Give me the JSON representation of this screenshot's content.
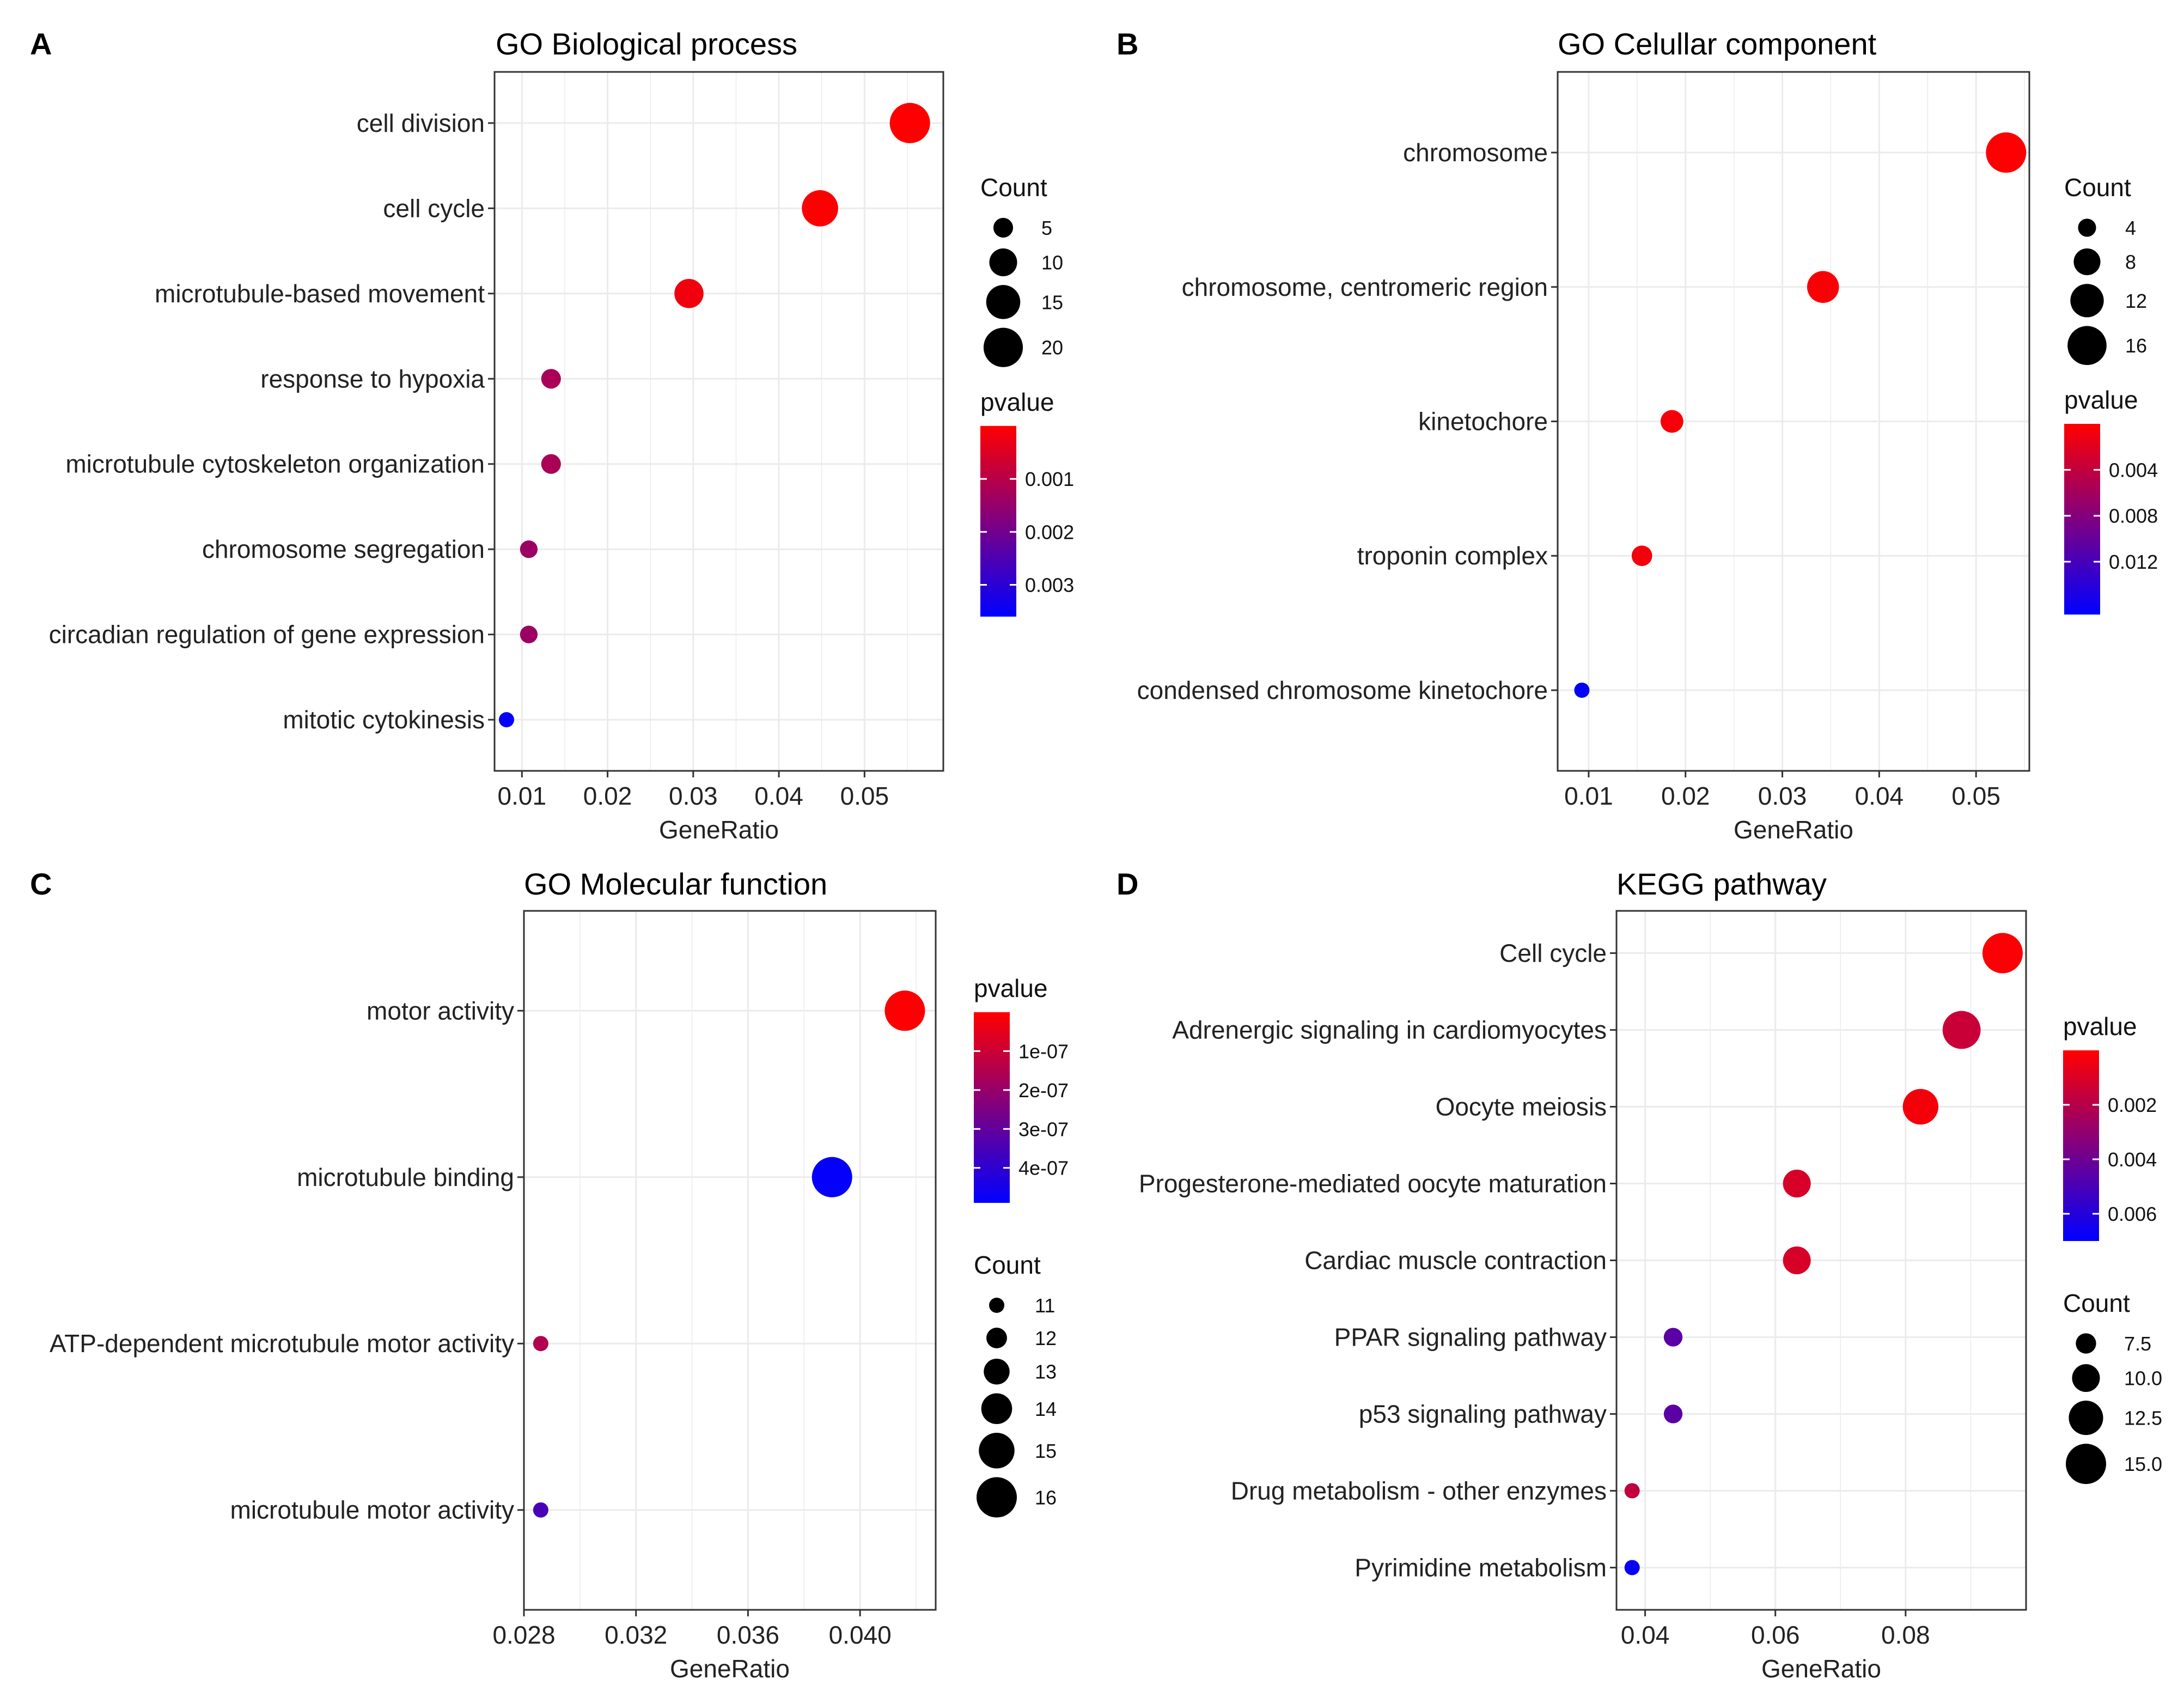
{
  "chart_data": [
    {
      "panel": "A",
      "type": "scatter",
      "title": "GO Biological process",
      "xlabel": "GeneRatio",
      "ylabel": "",
      "xlim": [
        0.0068,
        0.0592
      ],
      "xticks": [
        0.01,
        0.02,
        0.03,
        0.04,
        0.05
      ],
      "xtick_labels": [
        "0.01",
        "0.02",
        "0.03",
        "0.04",
        "0.05"
      ],
      "grid": true,
      "categories": [
        "cell division",
        "cell cycle",
        "microtubule-based movement",
        "response to hypoxia",
        "microtubule cytoskeleton organization",
        "chromosome segregation",
        "circadian regulation of gene expression",
        "mitotic cytokinesis"
      ],
      "x": [
        0.0553,
        0.0448,
        0.0295,
        0.0134,
        0.0134,
        0.0108,
        0.0108,
        0.0082
      ],
      "size": [
        21,
        17,
        11,
        5,
        5,
        4,
        4,
        3
      ],
      "pvalue": [
        2e-05,
        3e-05,
        0.0002,
        0.0012,
        0.0012,
        0.0014,
        0.0014,
        0.0035
      ],
      "legend_size": {
        "title": "Count",
        "values": [
          5,
          10,
          15,
          20
        ]
      },
      "legend_color": {
        "title": "pvalue",
        "range": [
          0.0,
          0.0036
        ],
        "ticks": [
          0.001,
          0.002,
          0.003
        ],
        "tick_labels": [
          "0.001",
          "0.002",
          "0.003"
        ]
      },
      "legend_order": [
        "size",
        "color"
      ]
    },
    {
      "panel": "B",
      "type": "scatter",
      "title": "GO Celullar component",
      "xlabel": "GeneRatio",
      "ylabel": "",
      "xlim": [
        0.0068,
        0.0555
      ],
      "xticks": [
        0.01,
        0.02,
        0.03,
        0.04,
        0.05
      ],
      "xtick_labels": [
        "0.01",
        "0.02",
        "0.03",
        "0.04",
        "0.05"
      ],
      "grid": true,
      "categories": [
        "chromosome",
        "chromosome, centromeric region",
        "kinetochore",
        "troponin complex",
        "condensed chromosome kinetochore"
      ],
      "x": [
        0.0531,
        0.0342,
        0.0186,
        0.0155,
        0.0093
      ],
      "size": [
        17,
        11,
        6,
        5,
        3
      ],
      "pvalue": [
        5e-05,
        0.0003,
        0.0006,
        0.0008,
        0.0165
      ],
      "legend_size": {
        "title": "Count",
        "values": [
          4,
          8,
          12,
          16
        ]
      },
      "legend_color": {
        "title": "pvalue",
        "range": [
          0.0,
          0.0166
        ],
        "ticks": [
          0.004,
          0.008,
          0.012
        ],
        "tick_labels": [
          "0.004",
          "0.008",
          "0.012"
        ]
      },
      "legend_order": [
        "size",
        "color"
      ]
    },
    {
      "panel": "C",
      "type": "scatter",
      "title": "GO Molecular function",
      "xlabel": "GeneRatio",
      "ylabel": "",
      "xlim": [
        0.028,
        0.0427
      ],
      "xticks": [
        0.028,
        0.032,
        0.036,
        0.04
      ],
      "xtick_labels": [
        "0.028",
        "0.032",
        "0.036",
        "0.040"
      ],
      "grid": true,
      "categories": [
        "motor activity",
        "microtubule binding",
        "ATP-dependent microtubule motor activity",
        "microtubule motor activity"
      ],
      "x": [
        0.0416,
        0.039,
        0.0286,
        0.0286
      ],
      "size": [
        16,
        16,
        11,
        11
      ],
      "pvalue": [
        5e-09,
        4.8e-07,
        1.5e-07,
        3.5e-07
      ],
      "legend_size": {
        "title": "Count",
        "values": [
          11,
          12,
          13,
          14,
          15,
          16
        ]
      },
      "legend_color": {
        "title": "pvalue",
        "range": [
          0.0,
          4.9e-07
        ],
        "ticks": [
          1e-07,
          2e-07,
          3e-07,
          4e-07
        ],
        "tick_labels": [
          "1e-07",
          "2e-07",
          "3e-07",
          "4e-07"
        ]
      },
      "legend_order": [
        "color",
        "size"
      ]
    },
    {
      "panel": "D",
      "type": "scatter",
      "title": "KEGG pathway",
      "xlabel": "GeneRatio",
      "ylabel": "",
      "xlim": [
        0.0356,
        0.0985
      ],
      "xticks": [
        0.04,
        0.06,
        0.08
      ],
      "xtick_labels": [
        "0.04",
        "0.06",
        "0.08"
      ],
      "grid": true,
      "categories": [
        "Cell cycle",
        "Adrenergic signaling in cardiomyocytes",
        "Oocyte meiosis",
        "Progesterone-mediated oocyte maturation",
        "Cardiac muscle contraction",
        "PPAR signaling pathway",
        "p53 signaling pathway",
        "Drug metabolism - other enzymes",
        "Pyrimidine metabolism"
      ],
      "x": [
        0.0949,
        0.0886,
        0.0823,
        0.0633,
        0.0633,
        0.0443,
        0.0443,
        0.038,
        0.038
      ],
      "size": [
        15,
        14,
        13,
        10,
        10,
        7,
        7,
        6,
        6
      ],
      "pvalue": [
        0.0001,
        0.0015,
        0.0003,
        0.0011,
        0.0011,
        0.0045,
        0.0045,
        0.0017,
        0.0068
      ],
      "legend_size": {
        "title": "Count",
        "values": [
          7.5,
          10.0,
          12.5,
          15.0
        ]
      },
      "legend_size_labels": [
        "7.5",
        "10.0",
        "12.5",
        "15.0"
      ],
      "legend_color": {
        "title": "pvalue",
        "range": [
          0.0,
          0.007
        ],
        "ticks": [
          0.002,
          0.004,
          0.006
        ],
        "tick_labels": [
          "0.002",
          "0.004",
          "0.006"
        ]
      },
      "legend_order": [
        "color",
        "size"
      ]
    }
  ],
  "colors": {
    "low": "#FF0000",
    "high": "#0000FF",
    "grid": "#EBEBEB",
    "frame": "#333333",
    "point_legend": "#000000"
  }
}
